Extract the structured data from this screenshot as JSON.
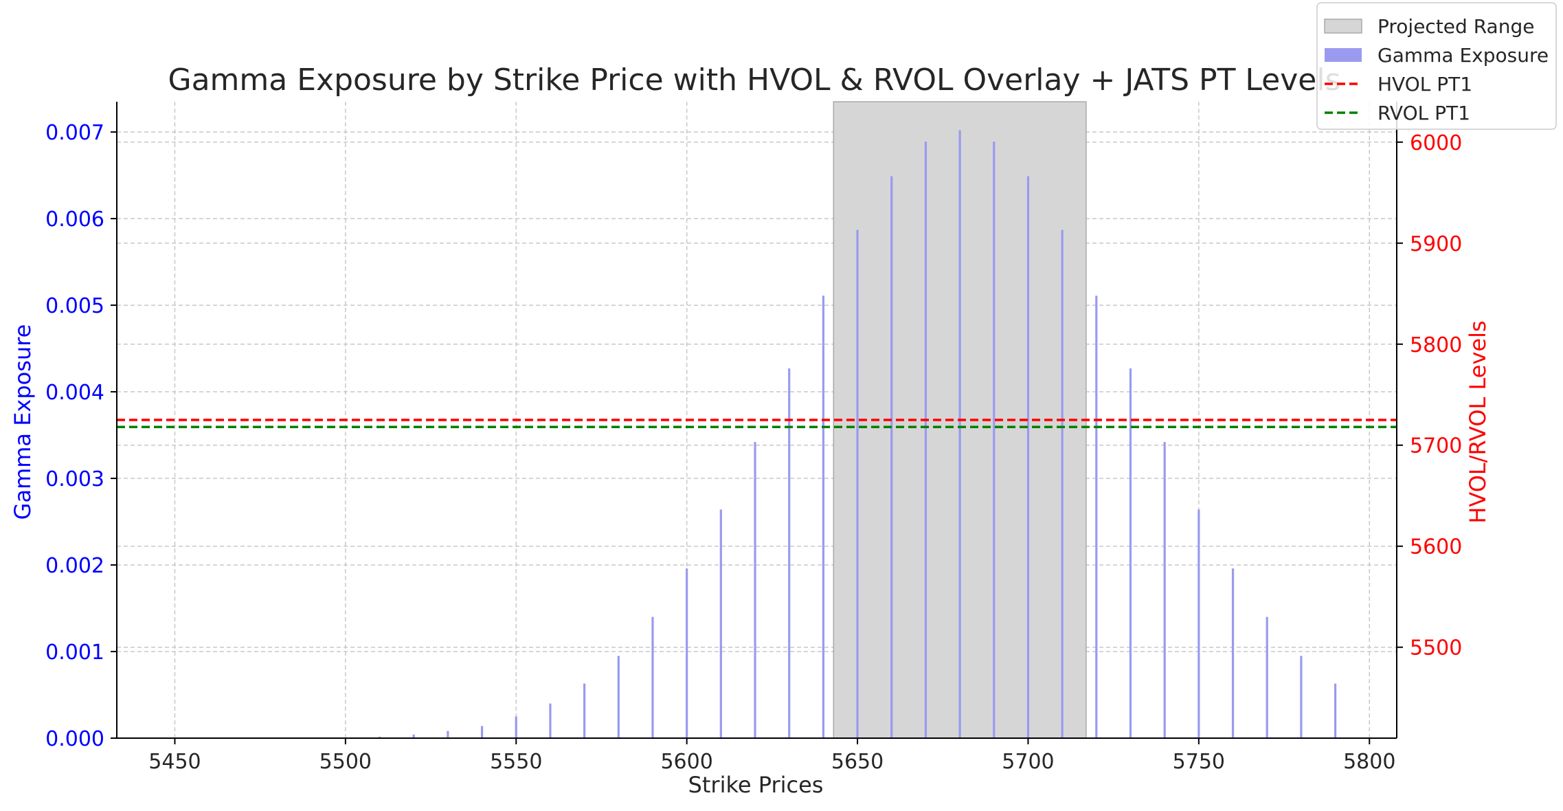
{
  "chart_data": {
    "type": "bar",
    "title": "Gamma Exposure by Strike Price with HVOL & RVOL Overlay + JATS PT Levels",
    "xlabel": "Strike Prices",
    "ylabel": "Gamma Exposure",
    "y2label": "HVOL/RVOL Levels",
    "xlim": [
      5433,
      5808
    ],
    "ylim": [
      0,
      0.00735
    ],
    "y2lim": [
      5410,
      6040
    ],
    "xticks": [
      5450,
      5500,
      5550,
      5600,
      5650,
      5700,
      5750,
      5800
    ],
    "xtick_labels": [
      "5450",
      "5500",
      "5550",
      "5600",
      "5650",
      "5700",
      "5750",
      "5800"
    ],
    "yticks": [
      0,
      0.001,
      0.002,
      0.003,
      0.004,
      0.005,
      0.006,
      0.007
    ],
    "ytick_labels": [
      "0.000",
      "0.001",
      "0.002",
      "0.003",
      "0.004",
      "0.005",
      "0.006",
      "0.007"
    ],
    "y2ticks": [
      5500,
      5600,
      5700,
      5800,
      5900,
      6000
    ],
    "y2tick_labels": [
      "5500",
      "5600",
      "5700",
      "5800",
      "5900",
      "6000"
    ],
    "grid": true,
    "legend_position": "top-right",
    "series": [
      {
        "name": "Gamma Exposure",
        "axis": "left",
        "color": "#9a9af0",
        "x": [
          5450,
          5460,
          5470,
          5480,
          5490,
          5500,
          5510,
          5520,
          5530,
          5540,
          5550,
          5560,
          5570,
          5580,
          5590,
          5600,
          5610,
          5620,
          5630,
          5640,
          5650,
          5660,
          5670,
          5680,
          5690,
          5700,
          5710,
          5720,
          5730,
          5740,
          5750,
          5760,
          5770,
          5780,
          5790
        ],
        "values": [
          0.0,
          0.0,
          0.0,
          0.0,
          0.0,
          5e-06,
          1.7e-05,
          4.2e-05,
          8.3e-05,
          0.00014,
          0.00025,
          0.0004,
          0.00063,
          0.00095,
          0.0014,
          0.00196,
          0.00264,
          0.00342,
          0.00427,
          0.00511,
          0.00587,
          0.00649,
          0.00689,
          0.00702,
          0.00689,
          0.00649,
          0.00587,
          0.00511,
          0.00427,
          0.00342,
          0.00264,
          0.00196,
          0.0014,
          0.00095,
          0.00063
        ]
      }
    ],
    "lines": [
      {
        "name": "HVOL PT1",
        "axis": "right",
        "value": 5725,
        "color": "#ff0000",
        "style": "dashed"
      },
      {
        "name": "RVOL PT1",
        "axis": "right",
        "value": 5718,
        "color": "#008000",
        "style": "dashed"
      }
    ],
    "projected_range": {
      "name": "Projected Range",
      "x_start": 5643,
      "x_end": 5717,
      "color": "#d6d6d6"
    },
    "colors": {
      "left_axis": "#0000ff",
      "right_axis": "#ff0000",
      "grid": "#c8c8c8"
    },
    "legend": [
      {
        "label": "Projected Range",
        "kind": "patch",
        "color": "#d6d6d6"
      },
      {
        "label": "Gamma Exposure",
        "kind": "patch",
        "color": "#9a9af0"
      },
      {
        "label": "HVOL PT1",
        "kind": "line",
        "color": "#ff0000"
      },
      {
        "label": "RVOL PT1",
        "kind": "line",
        "color": "#008000"
      }
    ]
  }
}
